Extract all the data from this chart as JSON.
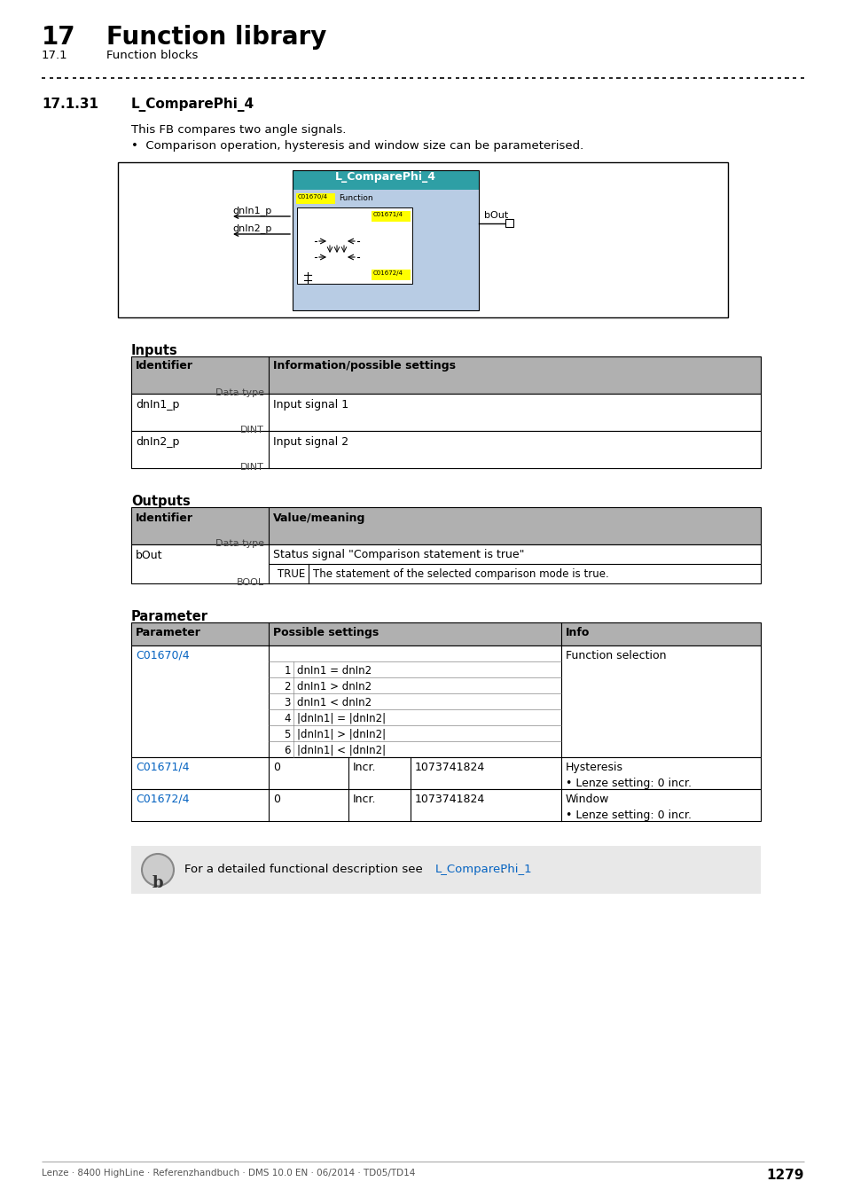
{
  "page_title_num": "17",
  "page_title_text": "Function library",
  "page_subtitle_num": "17.1",
  "page_subtitle_text": "Function blocks",
  "section_num": "17.1.31",
  "section_title": "L_ComparePhi_4",
  "description": "This FB compares two angle signals.",
  "bullet": "Comparison operation, hysteresis and window size can be parameterised.",
  "inputs_title": "Inputs",
  "outputs_title": "Outputs",
  "param_title": "Parameter",
  "inputs_rows": [
    [
      "dnIn1_p",
      "DINT",
      "Input signal 1"
    ],
    [
      "dnIn2_p",
      "DINT",
      "Input signal 2"
    ]
  ],
  "param_rows": [
    {
      "param": "C01670/4",
      "col2": "",
      "col3": "",
      "col4": "",
      "info": "Function selection",
      "sub": [
        {
          "num": "1",
          "text": "dnIn1 = dnIn2"
        },
        {
          "num": "2",
          "text": "dnIn1 > dnIn2"
        },
        {
          "num": "3",
          "text": "dnIn1 < dnIn2"
        },
        {
          "num": "4",
          "text": "|dnIn1| = |dnIn2|"
        },
        {
          "num": "5",
          "text": "|dnIn1| > |dnIn2|"
        },
        {
          "num": "6",
          "text": "|dnIn1| < |dnIn2|"
        }
      ]
    },
    {
      "param": "C01671/4",
      "col2": "0",
      "col3": "Incr.",
      "col4": "1073741824",
      "info": "Hysteresis",
      "info2": "• Lenze setting: 0 incr.",
      "sub": []
    },
    {
      "param": "C01672/4",
      "col2": "0",
      "col3": "Incr.",
      "col4": "1073741824",
      "info": "Window",
      "info2": "• Lenze setting: 0 incr.",
      "sub": []
    }
  ],
  "footer_link": "L_ComparePhi_1",
  "page_footer": "Lenze · 8400 HighLine · Referenzhandbuch · DMS 10.0 EN · 06/2014 · TD05/TD14",
  "page_number": "1279",
  "bg_color": "#ffffff",
  "header_bg": "#b0b0b0",
  "row_bg": "#ffffff",
  "link_color": "#0563C1",
  "yellow_color": "#ffff00",
  "note_bg": "#e8e8e8",
  "block_bg": "#b8cce4",
  "block_header_bg": "#2E9FA5"
}
